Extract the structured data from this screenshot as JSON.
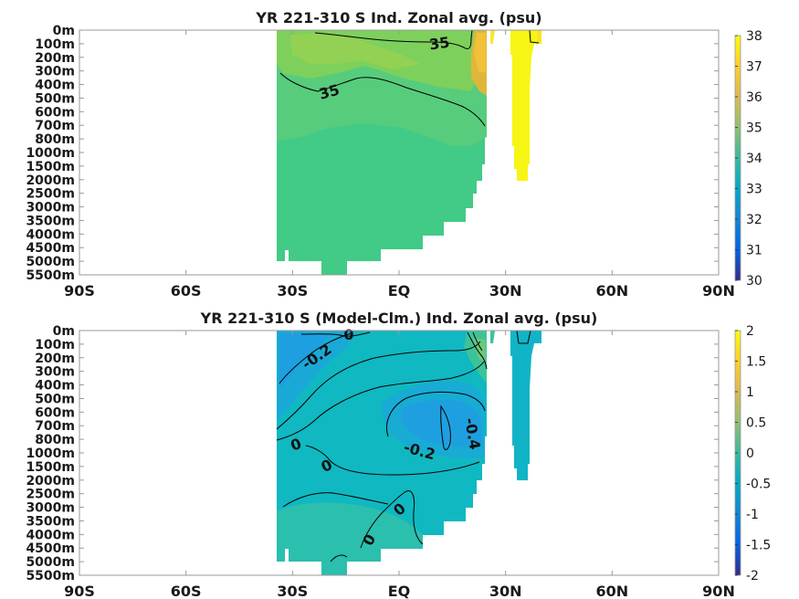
{
  "chart_data": [
    {
      "type": "heatmap",
      "title": "YR 221-310 S Ind. Zonal avg. (psu)",
      "x_ticks": [
        "90S",
        "60S",
        "30S",
        "EQ",
        "30N",
        "60N",
        "90N"
      ],
      "x_range": [
        -90,
        90
      ],
      "y_ticks": [
        "0m",
        "100m",
        "200m",
        "300m",
        "400m",
        "500m",
        "600m",
        "700m",
        "800m",
        "1000m",
        "1500m",
        "2000m",
        "2500m",
        "3000m",
        "3500m",
        "4000m",
        "4500m",
        "5000m",
        "5500m"
      ],
      "colorbar": {
        "range": [
          30,
          38
        ],
        "ticks": [
          "38",
          "37",
          "36",
          "35",
          "34",
          "33",
          "32",
          "31",
          "30"
        ]
      },
      "contour_labels": [
        "35",
        "35"
      ],
      "colors": {
        "background": "#41cb86",
        "high": "#f4e040",
        "mid": "#8bd156",
        "max": "#fafa14"
      }
    },
    {
      "type": "heatmap",
      "title": "YR 221-310 S (Model-Clm.) Ind. Zonal avg. (psu)",
      "x_ticks": [
        "90S",
        "60S",
        "30S",
        "EQ",
        "30N",
        "60N",
        "90N"
      ],
      "x_range": [
        -90,
        90
      ],
      "y_ticks": [
        "0m",
        "100m",
        "200m",
        "300m",
        "400m",
        "500m",
        "600m",
        "700m",
        "800m",
        "1000m",
        "1500m",
        "2000m",
        "2500m",
        "3000m",
        "3500m",
        "4000m",
        "4500m",
        "5000m",
        "5500m"
      ],
      "colorbar": {
        "range": [
          -2,
          2
        ],
        "ticks": [
          "2",
          "1.5",
          "1",
          "0.5",
          "0",
          "-0.5",
          "-1",
          "-1.5",
          "-2"
        ]
      },
      "contour_labels": [
        "0",
        "-0.2",
        "0",
        "0",
        "-0.2",
        "-0.4",
        "0",
        "0"
      ],
      "colors": {
        "background": "#10b8c1",
        "negative": "#1ea2e1",
        "positive": "#3cc39a"
      }
    }
  ]
}
